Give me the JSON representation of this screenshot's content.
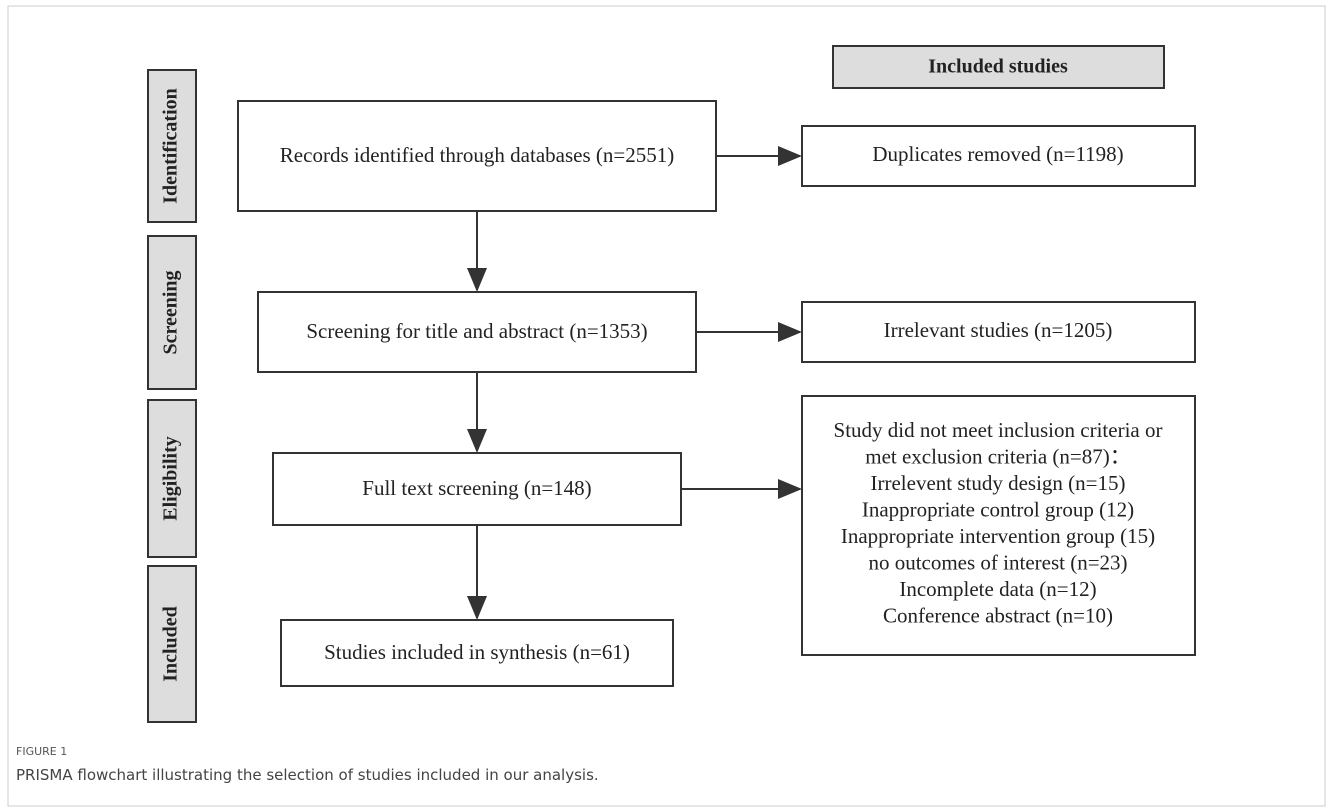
{
  "header": {
    "title": "Included studies"
  },
  "stages": [
    "Identification",
    "Screening",
    "Eligibility",
    "Included"
  ],
  "nodes": [
    {
      "label": "Records identified through databases (n=2551)"
    },
    {
      "label": "Screening for title and abstract (n=1353)"
    },
    {
      "label": "Full text screening (n=148)"
    },
    {
      "label": "Studies included in synthesis (n=61)"
    }
  ],
  "side_nodes": [
    {
      "lines": [
        "Duplicates removed (n=1198)"
      ]
    },
    {
      "lines": [
        "Irrelevant studies (n=1205)"
      ]
    },
    {
      "lines": [
        "Study did not meet inclusion criteria or",
        "met exclusion criteria (n=87)：",
        "Irrelevent study design (n=15)",
        "Inappropriate control group (12)",
        "Inappropriate intervention group (15)",
        "no outcomes of interest (n=23)",
        "Incomplete data (n=12)",
        "Conference abstract (n=10)"
      ]
    }
  ],
  "caption": {
    "label": "FIGURE 1",
    "text": "PRISMA flowchart illustrating the selection of studies included in our analysis."
  }
}
